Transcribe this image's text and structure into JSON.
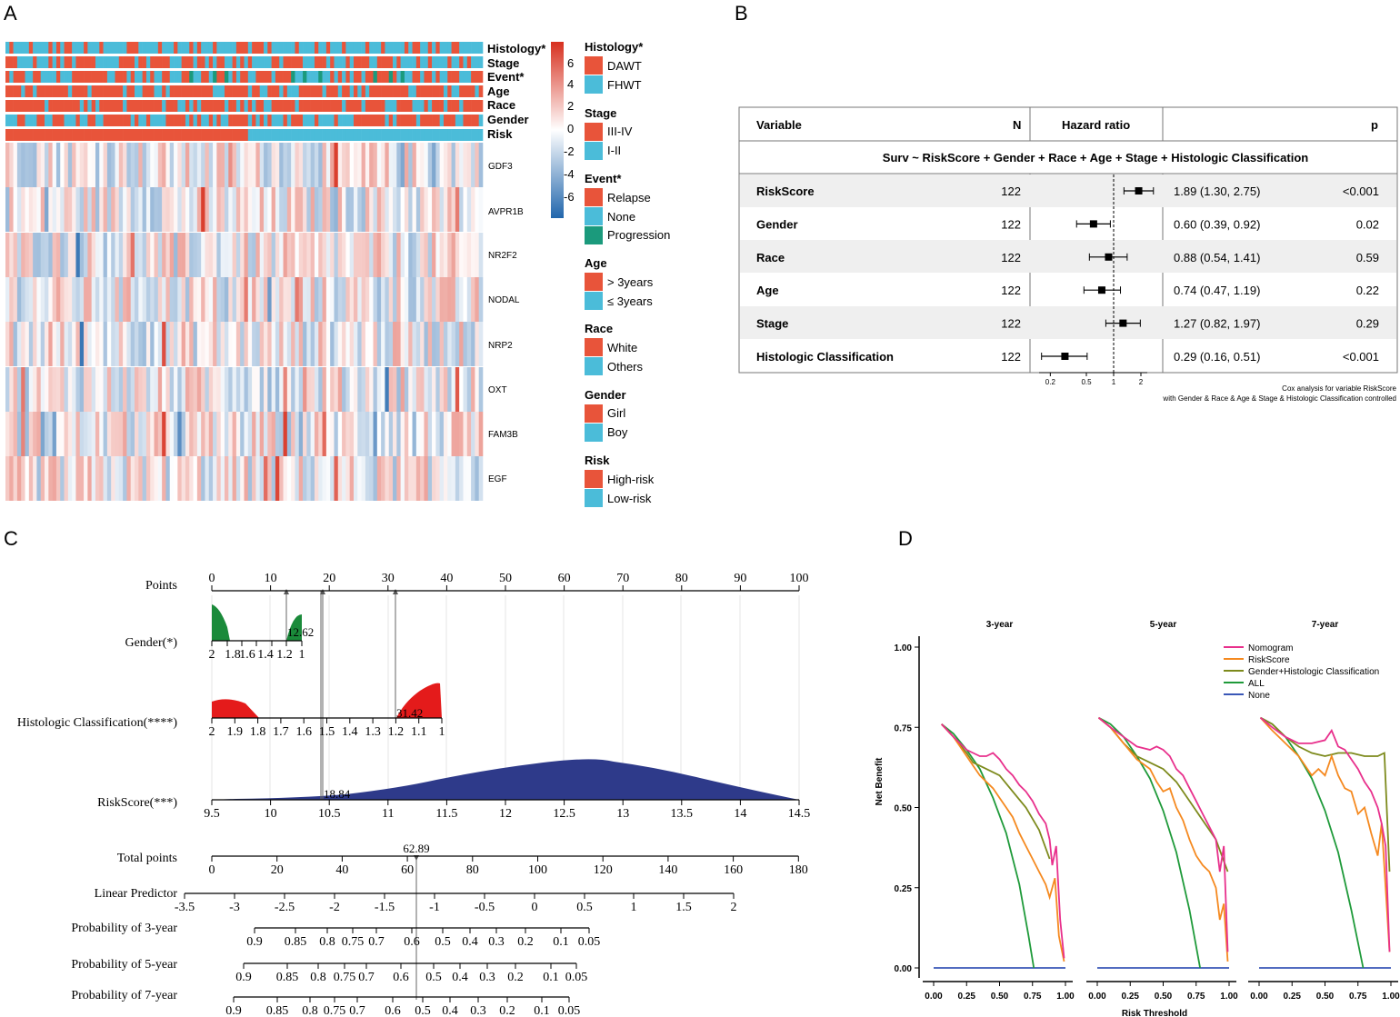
{
  "panels": {
    "a": "A",
    "b": "B",
    "c": "C",
    "d": "D"
  },
  "heatmap": {
    "annotation_tracks": [
      "Histology*",
      "Stage",
      "Event*",
      "Age",
      "Race",
      "Gender",
      "Risk"
    ],
    "genes": [
      "GDF3",
      "AVPR1B",
      "NR2F2",
      "NODAL",
      "NRP2",
      "OXT",
      "FAM3B",
      "EGF"
    ],
    "colorbar_ticks": [
      "6",
      "4",
      "2",
      "0",
      "-2",
      "-4",
      "-6"
    ],
    "colors": {
      "red": "#e8543a",
      "blue": "#4bbcd9",
      "green": "#1b9a7c",
      "high": "#d7301f",
      "low": "#2166ac"
    },
    "legend": [
      {
        "title": "Histology*",
        "items": [
          {
            "label": "DAWT",
            "color": "#e8543a"
          },
          {
            "label": "FHWT",
            "color": "#4bbcd9"
          }
        ]
      },
      {
        "title": "Stage",
        "items": [
          {
            "label": "III-IV",
            "color": "#e8543a"
          },
          {
            "label": "I-II",
            "color": "#4bbcd9"
          }
        ]
      },
      {
        "title": "Event*",
        "items": [
          {
            "label": "Relapse",
            "color": "#e8543a"
          },
          {
            "label": "None",
            "color": "#4bbcd9"
          },
          {
            "label": "Progression",
            "color": "#1b9a7c"
          }
        ]
      },
      {
        "title": "Age",
        "items": [
          {
            "label": "> 3years",
            "color": "#e8543a"
          },
          {
            "label": "≤ 3years",
            "color": "#4bbcd9"
          }
        ]
      },
      {
        "title": "Race",
        "items": [
          {
            "label": "White",
            "color": "#e8543a"
          },
          {
            "label": "Others",
            "color": "#4bbcd9"
          }
        ]
      },
      {
        "title": "Gender",
        "items": [
          {
            "label": "Girl",
            "color": "#e8543a"
          },
          {
            "label": "Boy",
            "color": "#4bbcd9"
          }
        ]
      },
      {
        "title": "Risk",
        "items": [
          {
            "label": "High-risk",
            "color": "#e8543a"
          },
          {
            "label": "Low-risk",
            "color": "#4bbcd9"
          }
        ]
      }
    ]
  },
  "forest": {
    "headers": {
      "variable": "Variable",
      "n": "N",
      "hr": "Hazard ratio",
      "p": "p"
    },
    "formula": "Surv ~ RiskScore + Gender + Race + Age + Stage + Histologic Classification",
    "rows": [
      {
        "variable": "RiskScore",
        "n": "122",
        "hr_text": "1.89 (1.30, 2.75)",
        "p": "<0.001",
        "hr": 1.89,
        "lo": 1.3,
        "hi": 2.75
      },
      {
        "variable": "Gender",
        "n": "122",
        "hr_text": "0.60 (0.39, 0.92)",
        "p": "0.02",
        "hr": 0.6,
        "lo": 0.39,
        "hi": 0.92
      },
      {
        "variable": "Race",
        "n": "122",
        "hr_text": "0.88 (0.54, 1.41)",
        "p": "0.59",
        "hr": 0.88,
        "lo": 0.54,
        "hi": 1.41
      },
      {
        "variable": "Age",
        "n": "122",
        "hr_text": "0.74 (0.47, 1.19)",
        "p": "0.22",
        "hr": 0.74,
        "lo": 0.47,
        "hi": 1.19
      },
      {
        "variable": "Stage",
        "n": "122",
        "hr_text": "1.27 (0.82, 1.97)",
        "p": "0.29",
        "hr": 1.27,
        "lo": 0.82,
        "hi": 1.97
      },
      {
        "variable": "Histologic Classification",
        "n": "122",
        "hr_text": "0.29 (0.16, 0.51)",
        "p": "<0.001",
        "hr": 0.29,
        "lo": 0.16,
        "hi": 0.51
      }
    ],
    "axis_ticks": [
      "0.2",
      "0.5",
      "1",
      "2"
    ],
    "footnote_1": "Cox analysis for variable RiskScore",
    "footnote_2": "with Gender & Race & Age & Stage & Histologic Classification controlled"
  },
  "nomogram": {
    "scales": [
      {
        "label": "Points",
        "ticks": [
          "0",
          "10",
          "20",
          "30",
          "40",
          "50",
          "60",
          "70",
          "80",
          "90",
          "100"
        ]
      },
      {
        "label": "Gender(*)",
        "ticks": [
          "2",
          "1.8",
          "1.6",
          "1.4",
          "1.2",
          "1"
        ],
        "marker": "12.62"
      },
      {
        "label": "Histologic Classification(****)",
        "ticks": [
          "2",
          "1.9",
          "1.8",
          "1.7",
          "1.6",
          "1.5",
          "1.4",
          "1.3",
          "1.2",
          "1.1",
          "1"
        ],
        "marker": "31.42"
      },
      {
        "label": "RiskScore(***)",
        "ticks": [
          "9.5",
          "10",
          "10.5",
          "11",
          "11.5",
          "12",
          "12.5",
          "13",
          "13.5",
          "14",
          "14.5"
        ],
        "marker": "18.84"
      },
      {
        "label": "Total points",
        "ticks": [
          "0",
          "20",
          "40",
          "60",
          "80",
          "100",
          "120",
          "140",
          "160",
          "180"
        ],
        "marker": "62.89"
      },
      {
        "label": "Linear Predictor",
        "ticks": [
          "-3.5",
          "-3",
          "-2.5",
          "-2",
          "-1.5",
          "-1",
          "-0.5",
          "0",
          "0.5",
          "1",
          "1.5",
          "2"
        ]
      },
      {
        "label": "Probability of 3-year",
        "ticks": [
          "0.9",
          "0.85",
          "0.8",
          "0.75",
          "0.7",
          "0.6",
          "0.5",
          "0.4",
          "0.3",
          "0.2",
          "0.1",
          "0.05"
        ]
      },
      {
        "label": "Probability of 5-year",
        "ticks": [
          "0.9",
          "0.85",
          "0.8",
          "0.75",
          "0.7",
          "0.6",
          "0.5",
          "0.4",
          "0.3",
          "0.2",
          "0.1",
          "0.05"
        ]
      },
      {
        "label": "Probability of 7-year",
        "ticks": [
          "0.9",
          "0.85",
          "0.8",
          "0.75",
          "0.7",
          "0.6",
          "0.5",
          "0.4",
          "0.3",
          "0.2",
          "0.1",
          "0.05"
        ]
      }
    ]
  },
  "chart_data": {
    "type": "line",
    "title": "",
    "facets": [
      "3-year",
      "5-year",
      "7-year"
    ],
    "xlabel": "Risk Threshold",
    "ylabel": "Net Benefit",
    "xlim": [
      0,
      1
    ],
    "ylim": [
      0,
      1
    ],
    "x_ticks": [
      "0.00",
      "0.25",
      "0.50",
      "0.75",
      "1.00"
    ],
    "y_ticks": [
      "0.00",
      "0.25",
      "0.50",
      "0.75",
      "1.00"
    ],
    "legend": [
      {
        "name": "Nomogram",
        "color": "#e8308c"
      },
      {
        "name": "RiskScore",
        "color": "#f5891f"
      },
      {
        "name": "Gender+Histologic Classification",
        "color": "#7d8a1c"
      },
      {
        "name": "ALL",
        "color": "#1f9a3a"
      },
      {
        "name": "None",
        "color": "#3a57b7"
      }
    ],
    "series": {
      "3-year": {
        "Nomogram": [
          [
            0.06,
            0.76
          ],
          [
            0.15,
            0.72
          ],
          [
            0.25,
            0.68
          ],
          [
            0.3,
            0.67
          ],
          [
            0.35,
            0.66
          ],
          [
            0.4,
            0.66
          ],
          [
            0.45,
            0.67
          ],
          [
            0.5,
            0.65
          ],
          [
            0.55,
            0.62
          ],
          [
            0.6,
            0.6
          ],
          [
            0.65,
            0.57
          ],
          [
            0.7,
            0.55
          ],
          [
            0.75,
            0.52
          ],
          [
            0.8,
            0.48
          ],
          [
            0.85,
            0.45
          ],
          [
            0.88,
            0.4
          ],
          [
            0.9,
            0.32
          ],
          [
            0.93,
            0.38
          ],
          [
            0.96,
            0.15
          ],
          [
            0.99,
            0.03
          ]
        ],
        "RiskScore": [
          [
            0.06,
            0.76
          ],
          [
            0.15,
            0.72
          ],
          [
            0.25,
            0.66
          ],
          [
            0.3,
            0.63
          ],
          [
            0.35,
            0.6
          ],
          [
            0.4,
            0.58
          ],
          [
            0.45,
            0.56
          ],
          [
            0.5,
            0.53
          ],
          [
            0.55,
            0.5
          ],
          [
            0.6,
            0.47
          ],
          [
            0.65,
            0.42
          ],
          [
            0.7,
            0.38
          ],
          [
            0.75,
            0.34
          ],
          [
            0.8,
            0.3
          ],
          [
            0.85,
            0.26
          ],
          [
            0.88,
            0.22
          ],
          [
            0.92,
            0.28
          ],
          [
            0.95,
            0.1
          ],
          [
            0.99,
            0.02
          ]
        ],
        "Gender+Histologic Classification": [
          [
            0.06,
            0.76
          ],
          [
            0.15,
            0.72
          ],
          [
            0.25,
            0.67
          ],
          [
            0.3,
            0.64
          ],
          [
            0.4,
            0.62
          ],
          [
            0.5,
            0.6
          ],
          [
            0.6,
            0.55
          ],
          [
            0.7,
            0.5
          ],
          [
            0.8,
            0.43
          ],
          [
            0.88,
            0.34
          ]
        ],
        "ALL": [
          [
            0.06,
            0.76
          ],
          [
            0.15,
            0.73
          ],
          [
            0.25,
            0.68
          ],
          [
            0.35,
            0.62
          ],
          [
            0.45,
            0.53
          ],
          [
            0.55,
            0.42
          ],
          [
            0.65,
            0.26
          ],
          [
            0.72,
            0.1
          ],
          [
            0.76,
            0.0
          ]
        ],
        "None": [
          [
            0.0,
            0.0
          ],
          [
            1.0,
            0.0
          ]
        ]
      },
      "5-year": {
        "Nomogram": [
          [
            0.01,
            0.78
          ],
          [
            0.1,
            0.75
          ],
          [
            0.2,
            0.72
          ],
          [
            0.3,
            0.69
          ],
          [
            0.4,
            0.68
          ],
          [
            0.45,
            0.69
          ],
          [
            0.5,
            0.68
          ],
          [
            0.55,
            0.66
          ],
          [
            0.6,
            0.62
          ],
          [
            0.65,
            0.6
          ],
          [
            0.7,
            0.56
          ],
          [
            0.75,
            0.52
          ],
          [
            0.8,
            0.48
          ],
          [
            0.85,
            0.44
          ],
          [
            0.9,
            0.4
          ],
          [
            0.93,
            0.3
          ],
          [
            0.96,
            0.38
          ],
          [
            0.99,
            0.05
          ]
        ],
        "RiskScore": [
          [
            0.01,
            0.78
          ],
          [
            0.1,
            0.75
          ],
          [
            0.2,
            0.7
          ],
          [
            0.3,
            0.65
          ],
          [
            0.4,
            0.62
          ],
          [
            0.45,
            0.58
          ],
          [
            0.5,
            0.55
          ],
          [
            0.55,
            0.56
          ],
          [
            0.6,
            0.5
          ],
          [
            0.65,
            0.46
          ],
          [
            0.7,
            0.4
          ],
          [
            0.75,
            0.35
          ],
          [
            0.8,
            0.32
          ],
          [
            0.85,
            0.3
          ],
          [
            0.9,
            0.25
          ],
          [
            0.93,
            0.15
          ],
          [
            0.96,
            0.2
          ],
          [
            0.99,
            0.02
          ]
        ],
        "Gender+Histologic Classification": [
          [
            0.01,
            0.78
          ],
          [
            0.1,
            0.75
          ],
          [
            0.2,
            0.7
          ],
          [
            0.3,
            0.66
          ],
          [
            0.4,
            0.64
          ],
          [
            0.5,
            0.62
          ],
          [
            0.6,
            0.58
          ],
          [
            0.7,
            0.52
          ],
          [
            0.8,
            0.46
          ],
          [
            0.9,
            0.4
          ],
          [
            0.99,
            0.3
          ]
        ],
        "ALL": [
          [
            0.01,
            0.78
          ],
          [
            0.1,
            0.76
          ],
          [
            0.2,
            0.72
          ],
          [
            0.3,
            0.66
          ],
          [
            0.4,
            0.59
          ],
          [
            0.5,
            0.49
          ],
          [
            0.6,
            0.36
          ],
          [
            0.7,
            0.18
          ],
          [
            0.78,
            0.0
          ]
        ],
        "None": [
          [
            0.0,
            0.0
          ],
          [
            1.0,
            0.0
          ]
        ]
      },
      "7-year": {
        "Nomogram": [
          [
            0.01,
            0.78
          ],
          [
            0.1,
            0.75
          ],
          [
            0.2,
            0.72
          ],
          [
            0.3,
            0.7
          ],
          [
            0.4,
            0.7
          ],
          [
            0.5,
            0.71
          ],
          [
            0.55,
            0.74
          ],
          [
            0.6,
            0.69
          ],
          [
            0.65,
            0.68
          ],
          [
            0.7,
            0.65
          ],
          [
            0.75,
            0.62
          ],
          [
            0.8,
            0.58
          ],
          [
            0.85,
            0.55
          ],
          [
            0.9,
            0.5
          ],
          [
            0.93,
            0.45
          ],
          [
            0.96,
            0.38
          ],
          [
            0.99,
            0.05
          ]
        ],
        "RiskScore": [
          [
            0.01,
            0.78
          ],
          [
            0.1,
            0.74
          ],
          [
            0.2,
            0.7
          ],
          [
            0.3,
            0.66
          ],
          [
            0.4,
            0.6
          ],
          [
            0.45,
            0.62
          ],
          [
            0.5,
            0.6
          ],
          [
            0.55,
            0.66
          ],
          [
            0.6,
            0.6
          ],
          [
            0.65,
            0.56
          ],
          [
            0.7,
            0.55
          ],
          [
            0.75,
            0.48
          ],
          [
            0.8,
            0.5
          ],
          [
            0.85,
            0.42
          ],
          [
            0.9,
            0.35
          ],
          [
            0.93,
            0.45
          ],
          [
            0.96,
            0.25
          ],
          [
            0.99,
            0.05
          ]
        ],
        "Gender+Histologic Classification": [
          [
            0.01,
            0.78
          ],
          [
            0.1,
            0.76
          ],
          [
            0.2,
            0.72
          ],
          [
            0.3,
            0.69
          ],
          [
            0.4,
            0.67
          ],
          [
            0.5,
            0.66
          ],
          [
            0.6,
            0.67
          ],
          [
            0.7,
            0.67
          ],
          [
            0.8,
            0.66
          ],
          [
            0.9,
            0.66
          ],
          [
            0.95,
            0.67
          ],
          [
            0.99,
            0.3
          ]
        ],
        "ALL": [
          [
            0.01,
            0.78
          ],
          [
            0.1,
            0.76
          ],
          [
            0.2,
            0.72
          ],
          [
            0.3,
            0.66
          ],
          [
            0.4,
            0.59
          ],
          [
            0.5,
            0.49
          ],
          [
            0.6,
            0.36
          ],
          [
            0.7,
            0.18
          ],
          [
            0.79,
            0.0
          ]
        ],
        "None": [
          [
            0.0,
            0.0
          ],
          [
            1.0,
            0.0
          ]
        ]
      }
    }
  }
}
